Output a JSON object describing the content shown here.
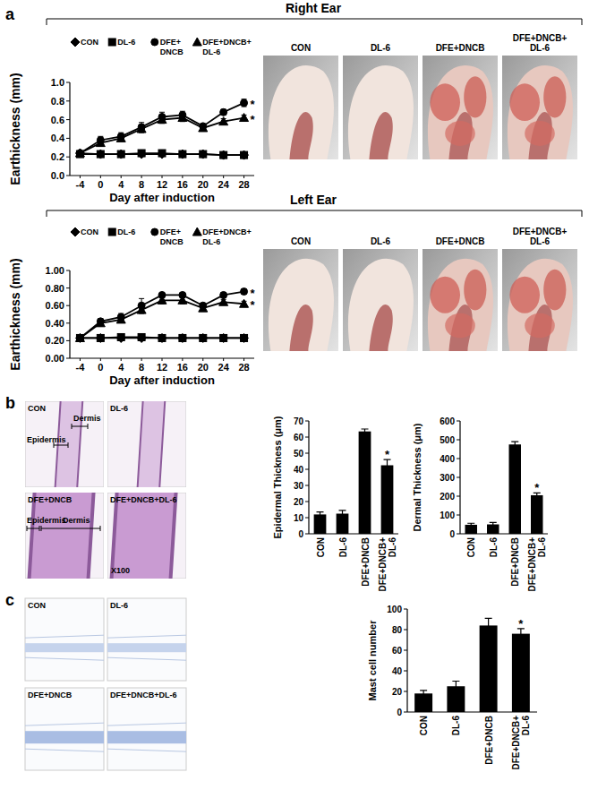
{
  "chart_data": [
    {
      "type": "line",
      "title": "Right Ear",
      "x_label": "Day after induction",
      "y_label": "Earthickness (mm)",
      "categories": [
        "-4",
        "0",
        "4",
        "8",
        "12",
        "16",
        "20",
        "24",
        "28"
      ],
      "ylim": [
        0,
        1.0
      ],
      "yticks": [
        {
          "value": 0,
          "label": "0.0"
        },
        0.2,
        0.4,
        0.6,
        0.8,
        {
          "value": 1.0,
          "label": "1.0"
        }
      ],
      "legend": "top",
      "series": [
        {
          "name": "CON",
          "color": "#000000",
          "marker": "diamond",
          "line_style": "solid",
          "values": [
            0.24,
            0.23,
            0.23,
            0.23,
            0.23,
            0.23,
            0.23,
            0.22,
            0.22
          ]
        },
        {
          "name": "DL-6",
          "color": "#000000",
          "marker": "square",
          "line_style": "solid",
          "values": [
            0.23,
            0.23,
            0.23,
            0.24,
            0.24,
            0.23,
            0.23,
            0.22,
            0.22
          ]
        },
        {
          "name": "DFE+DNCB",
          "color": "#000000",
          "marker": "circle",
          "line_style": "solid",
          "values": [
            0.24,
            0.38,
            0.42,
            0.52,
            0.63,
            0.65,
            0.53,
            0.68,
            0.78
          ],
          "errors": [
            0.01,
            0.04,
            0.04,
            0.05,
            0.05,
            0.04,
            0.02,
            0.03,
            0.04
          ]
        },
        {
          "name": "DFE+DNCB+DL-6",
          "color": "#000000",
          "marker": "triangle",
          "line_style": "solid",
          "values": [
            0.24,
            0.35,
            0.4,
            0.5,
            0.6,
            0.62,
            0.51,
            0.58,
            0.62
          ],
          "errors": [
            0.01,
            0.03,
            0.03,
            0.04,
            0.04,
            0.04,
            0.02,
            0.03,
            0.03
          ]
        }
      ],
      "annotations": [
        {
          "text": "*",
          "series": 2
        },
        {
          "text": "*",
          "series": 3
        }
      ]
    },
    {
      "type": "line",
      "title": "Left Ear",
      "x_label": "Day after induction",
      "y_label": "Earthickness (mm)",
      "categories": [
        "-4",
        "0",
        "4",
        "8",
        "12",
        "16",
        "20",
        "24",
        "28"
      ],
      "ylim": [
        0,
        1.0
      ],
      "yticks": [
        {
          "value": 0,
          "label": "0.00"
        },
        {
          "value": 0.2,
          "label": "0.20"
        },
        {
          "value": 0.4,
          "label": "0.40"
        },
        {
          "value": 0.6,
          "label": "0.60"
        },
        {
          "value": 0.8,
          "label": "0.80"
        },
        {
          "value": 1.0,
          "label": "1.00"
        }
      ],
      "legend": "top",
      "series": [
        {
          "name": "CON",
          "color": "#000000",
          "marker": "diamond",
          "line_style": "solid",
          "values": [
            0.23,
            0.23,
            0.23,
            0.23,
            0.23,
            0.23,
            0.23,
            0.23,
            0.23
          ]
        },
        {
          "name": "DL-6",
          "color": "#000000",
          "marker": "square",
          "line_style": "solid",
          "values": [
            0.23,
            0.23,
            0.24,
            0.24,
            0.23,
            0.23,
            0.23,
            0.23,
            0.23
          ]
        },
        {
          "name": "DFE+DNCB",
          "color": "#000000",
          "marker": "circle",
          "line_style": "solid",
          "values": [
            0.23,
            0.42,
            0.47,
            0.6,
            0.72,
            0.72,
            0.6,
            0.72,
            0.76
          ],
          "errors": [
            0.01,
            0.03,
            0.04,
            0.08,
            0.03,
            0.03,
            0.02,
            0.03,
            0.03
          ]
        },
        {
          "name": "DFE+DNCB+DL-6",
          "color": "#000000",
          "marker": "triangle",
          "line_style": "solid",
          "values": [
            0.23,
            0.4,
            0.44,
            0.55,
            0.66,
            0.66,
            0.57,
            0.64,
            0.62
          ],
          "errors": [
            0.01,
            0.03,
            0.03,
            0.04,
            0.04,
            0.04,
            0.02,
            0.03,
            0.03
          ]
        }
      ],
      "annotations": [
        {
          "text": "*",
          "series": 2
        },
        {
          "text": "*",
          "series": 3
        }
      ]
    },
    {
      "type": "bar",
      "y_label": "Epidermal Thickness (μm)",
      "categories": [
        "CON",
        "DL-6",
        "DFE+DNCB",
        "DFE+DNCB+DL-6"
      ],
      "values": [
        12,
        12.5,
        63.5,
        42.5
      ],
      "errors": [
        1.5,
        2,
        1.5,
        3.5
      ],
      "color": "#000000",
      "ylim": [
        0,
        70
      ],
      "yticks": [
        0,
        10,
        20,
        30,
        40,
        50,
        60,
        70
      ],
      "annotations": [
        {
          "text": "*",
          "category": 3
        }
      ]
    },
    {
      "type": "bar",
      "y_label": "Dermal Thickness (μm)",
      "categories": [
        "CON",
        "DL-6",
        "DFE+DNCB",
        "DFE+DNCB+DL-6"
      ],
      "values": [
        48,
        50,
        475,
        205
      ],
      "errors": [
        8,
        10,
        15,
        12
      ],
      "color": "#000000",
      "ylim": [
        0,
        600
      ],
      "yticks": [
        0,
        100,
        200,
        300,
        400,
        500,
        600
      ],
      "annotations": [
        {
          "text": "*",
          "category": 3
        }
      ]
    },
    {
      "type": "bar",
      "y_label": "Mast cell number",
      "categories": [
        "CON",
        "DL-6",
        "DFE+DNCB",
        "DFE+DNCB+DL-6"
      ],
      "values": [
        18,
        25,
        84,
        76
      ],
      "errors": [
        3,
        5,
        7,
        5
      ],
      "color": "#000000",
      "ylim": [
        0,
        100
      ],
      "yticks": [
        0,
        20,
        40,
        60,
        80,
        100
      ],
      "annotations": [
        {
          "text": "*",
          "category": 3
        }
      ]
    }
  ],
  "figure": {
    "panel_letters": [
      "a",
      "b",
      "c"
    ],
    "photo_labels": [
      "CON",
      "DL-6",
      "DFE+DNCB",
      "DFE+DNCB+DL-6"
    ],
    "histology_b": {
      "labels": [
        "CON",
        "DL-6",
        "DFE+DNCB",
        "DFE+DNCB+DL-6"
      ],
      "layer_labels": [
        "Dermis",
        "Epidermis"
      ],
      "magnification": "X100"
    },
    "histology_c": {
      "labels": [
        "CON",
        "DL-6",
        "DFE+DNCB",
        "DFE+DNCB+DL-6"
      ]
    }
  }
}
